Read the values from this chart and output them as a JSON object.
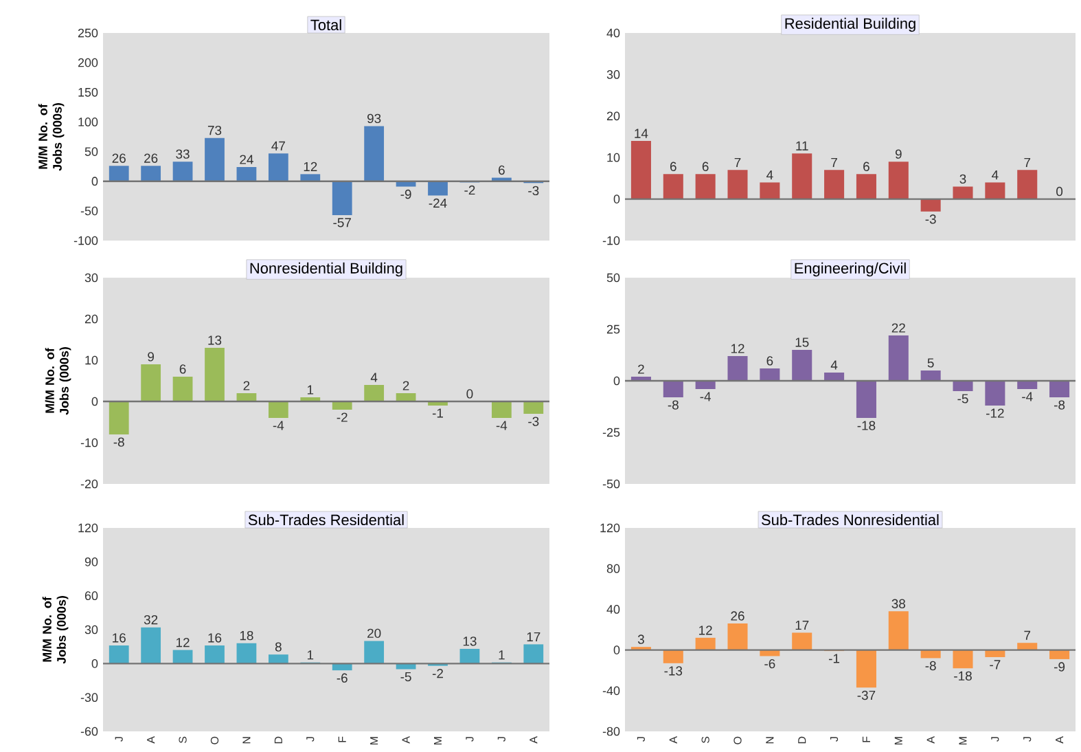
{
  "chart_data": [
    {
      "type": "bar",
      "title": "Total",
      "ylabel": "M/M No. of Jobs (000s)",
      "categories": [
        null,
        null,
        null,
        null,
        null,
        null,
        null,
        null,
        null,
        null,
        null,
        null,
        null,
        null
      ],
      "values": [
        26,
        26,
        33,
        73,
        24,
        47,
        12,
        -57,
        93,
        -9,
        -24,
        -2,
        6,
        -3
      ],
      "color": "#4f81bd",
      "ylim": [
        -100,
        250
      ],
      "yticks": [
        -100,
        -50,
        0,
        50,
        100,
        150,
        200,
        250
      ],
      "data_labels": true,
      "tick_labels": "y"
    },
    {
      "type": "bar",
      "title": "Residential Building",
      "categories": [
        null,
        null,
        null,
        null,
        null,
        null,
        null,
        null,
        null,
        null,
        null,
        null,
        null,
        null
      ],
      "values": [
        14,
        6,
        6,
        7,
        4,
        11,
        7,
        6,
        9,
        -3,
        3,
        4,
        7,
        0
      ],
      "color": "#c0504d",
      "ylim": [
        -10,
        40
      ],
      "yticks": [
        -10,
        0,
        10,
        20,
        30,
        40
      ],
      "data_labels": true,
      "tick_labels": "y"
    },
    {
      "type": "bar",
      "title": "Nonresidential Building",
      "ylabel": "M/M No. of Jobs (000s)",
      "categories": [
        null,
        null,
        null,
        null,
        null,
        null,
        null,
        null,
        null,
        null,
        null,
        null,
        null,
        null
      ],
      "values": [
        -8,
        9,
        6,
        13,
        2,
        -4,
        1,
        -2,
        4,
        2,
        -1,
        0,
        -4,
        -3
      ],
      "color": "#9bbb59",
      "ylim": [
        -20,
        30
      ],
      "yticks": [
        -20,
        -10,
        0,
        10,
        20,
        30
      ],
      "data_labels": true,
      "tick_labels": "y"
    },
    {
      "type": "bar",
      "title": "Engineering/Civil",
      "categories": [
        null,
        null,
        null,
        null,
        null,
        null,
        null,
        null,
        null,
        null,
        null,
        null,
        null,
        null
      ],
      "values": [
        2,
        -8,
        -4,
        12,
        6,
        15,
        4,
        -18,
        22,
        5,
        -5,
        -12,
        -4,
        -8
      ],
      "color": "#8064a2",
      "ylim": [
        -50,
        50
      ],
      "yticks": [
        -50,
        -25,
        0,
        25,
        50
      ],
      "data_labels": true,
      "tick_labels": "y"
    },
    {
      "type": "bar",
      "title": "Sub-Trades Residential",
      "ylabel": "M/M No. of Jobs (000s)",
      "categories": [
        "J",
        "A",
        "S",
        "O",
        "N",
        "D",
        "J",
        "F",
        "M",
        "A",
        "M",
        "J",
        "J",
        "A"
      ],
      "values": [
        16,
        32,
        12,
        16,
        18,
        8,
        1,
        -6,
        20,
        -5,
        -2,
        13,
        1,
        17
      ],
      "color": "#4bacc6",
      "ylim": [
        -60,
        120
      ],
      "yticks": [
        -60,
        -30,
        0,
        30,
        60,
        90,
        120
      ],
      "data_labels": true
    },
    {
      "type": "bar",
      "title": "Sub-Trades Nonresidential",
      "categories": [
        "J",
        "A",
        "S",
        "O",
        "N",
        "D",
        "J",
        "F",
        "M",
        "A",
        "M",
        "J",
        "J",
        "A"
      ],
      "values": [
        3,
        -13,
        12,
        26,
        -6,
        17,
        -1,
        -37,
        38,
        -8,
        -18,
        -7,
        7,
        -9
      ],
      "color": "#f79646",
      "ylim": [
        -80,
        120
      ],
      "yticks": [
        -80,
        -40,
        0,
        40,
        80,
        120
      ],
      "data_labels": true
    }
  ]
}
